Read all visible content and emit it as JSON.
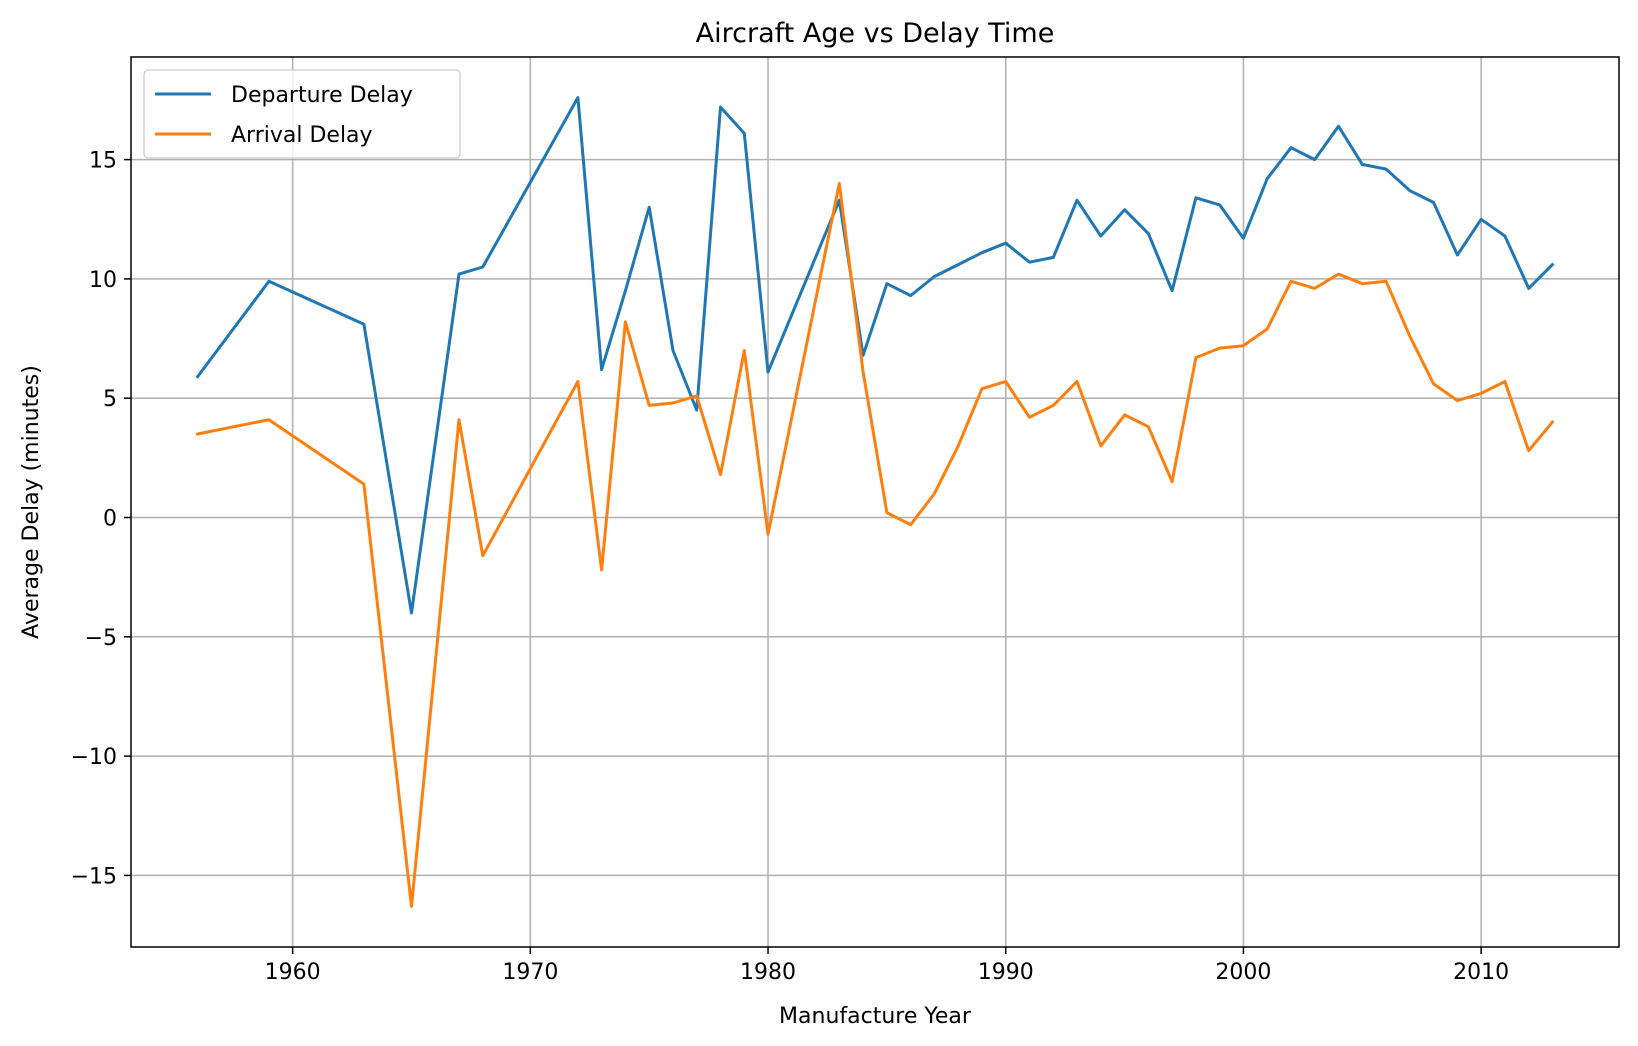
{
  "chart_data": {
    "type": "line",
    "title": "Aircraft Age vs Delay Time",
    "xlabel": "Manufacture Year",
    "ylabel": "Average Delay (minutes)",
    "xlim": [
      1953.2,
      2015.8
    ],
    "ylim": [
      -18.0,
      19.3
    ],
    "xticks": [
      1960,
      1970,
      1980,
      1990,
      2000,
      2010
    ],
    "yticks": [
      -15,
      -10,
      -5,
      0,
      5,
      10,
      15
    ],
    "xtick_labels": [
      "1960",
      "1970",
      "1980",
      "1990",
      "2000",
      "2010"
    ],
    "ytick_labels": [
      "−15",
      "−10",
      "−5",
      "0",
      "5",
      "10",
      "15"
    ],
    "grid": true,
    "legend_position": "upper-left",
    "x": [
      1956,
      1959,
      1963,
      1965,
      1967,
      1968,
      1972,
      1973,
      1974,
      1975,
      1976,
      1977,
      1978,
      1979,
      1980,
      1983,
      1984,
      1985,
      1986,
      1987,
      1988,
      1989,
      1990,
      1991,
      1992,
      1993,
      1994,
      1995,
      1996,
      1997,
      1998,
      1999,
      2000,
      2001,
      2002,
      2003,
      2004,
      2005,
      2006,
      2007,
      2008,
      2009,
      2010,
      2011,
      2012,
      2013
    ],
    "series": [
      {
        "name": "Departure Delay",
        "color": "#1f77b4",
        "values": [
          5.9,
          9.9,
          8.1,
          -4.0,
          10.2,
          10.5,
          17.6,
          6.2,
          9.5,
          13.0,
          7.0,
          4.5,
          17.2,
          16.1,
          6.1,
          13.3,
          6.8,
          9.8,
          9.3,
          10.1,
          10.6,
          11.1,
          11.5,
          10.7,
          10.9,
          13.3,
          11.8,
          12.9,
          11.9,
          9.5,
          13.4,
          13.1,
          11.7,
          14.2,
          15.5,
          15.0,
          16.4,
          14.8,
          14.6,
          13.7,
          13.2,
          11.0,
          12.5,
          11.8,
          9.6,
          10.6
        ]
      },
      {
        "name": "Arrival Delay",
        "color": "#ff7f0e",
        "values": [
          3.5,
          4.1,
          1.4,
          -16.3,
          4.1,
          -1.6,
          5.7,
          -2.2,
          8.2,
          4.7,
          4.8,
          5.1,
          1.8,
          7.0,
          -0.7,
          14.0,
          6.1,
          0.2,
          -0.3,
          1.0,
          3.0,
          5.4,
          5.7,
          4.2,
          4.7,
          5.7,
          3.0,
          4.3,
          3.8,
          1.5,
          6.7,
          7.1,
          7.2,
          7.9,
          9.9,
          9.6,
          10.2,
          9.8,
          9.9,
          7.6,
          5.6,
          4.9,
          5.2,
          5.7,
          2.8,
          4.0
        ]
      }
    ]
  }
}
